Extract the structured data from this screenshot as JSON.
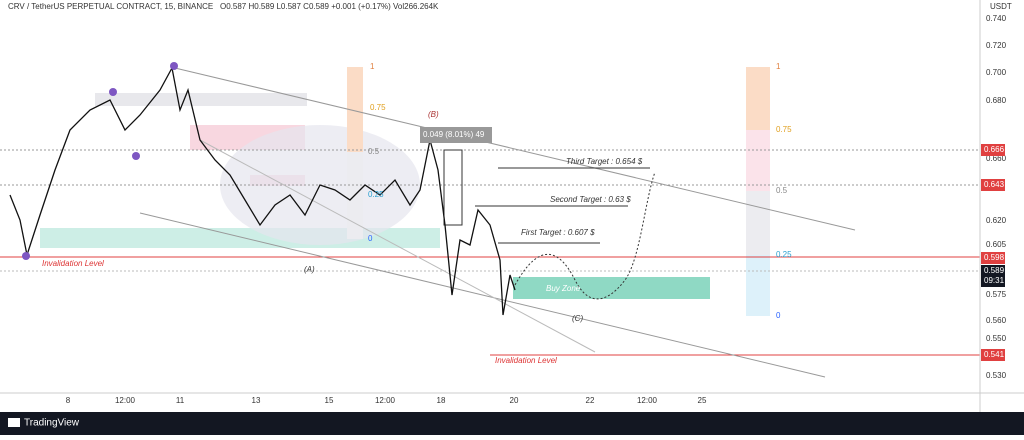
{
  "header": {
    "symbol": "CRV / TetherUS PERPETUAL CONTRACT, 15, BINANCE",
    "ohlc": "O0.587 H0.589 L0.587 C0.589 +0.001 (+0.17%) Vol266.264K"
  },
  "price_axis": {
    "unit": "USDT",
    "labels": [
      "0.740",
      "0.720",
      "0.700",
      "0.680",
      "0.660",
      "0.620",
      "0.605",
      "0.575",
      "0.560",
      "0.550",
      "0.530"
    ],
    "badges": [
      "0.666",
      "0.643",
      "0.598",
      "0.589",
      "09:31",
      "0.541"
    ]
  },
  "time_axis": {
    "labels": [
      "8",
      "12:00",
      "11",
      "13",
      "15",
      "12:00",
      "18",
      "20",
      "22",
      "12:00",
      "25"
    ]
  },
  "annotations": {
    "invalidation_top": "Invalidation Level",
    "invalidation_bottom": "Invalidation Level",
    "wave_a": "(A)",
    "wave_b": "(B)",
    "wave_c": "(C)",
    "buy_zone": "Buy Zone",
    "first_target": "First Target : 0.607 $",
    "second_target": "Second Target : 0.63 $",
    "third_target": "Third Target : 0.654 $",
    "measure": "0.049 (8.01%) 49"
  },
  "fib_left": [
    "1",
    "0.75",
    "0.5",
    "0.25",
    "0"
  ],
  "fib_right": [
    "1",
    "0.75",
    "0.5",
    "0.25",
    "0"
  ],
  "footer": {
    "brand": "TradingView"
  }
}
